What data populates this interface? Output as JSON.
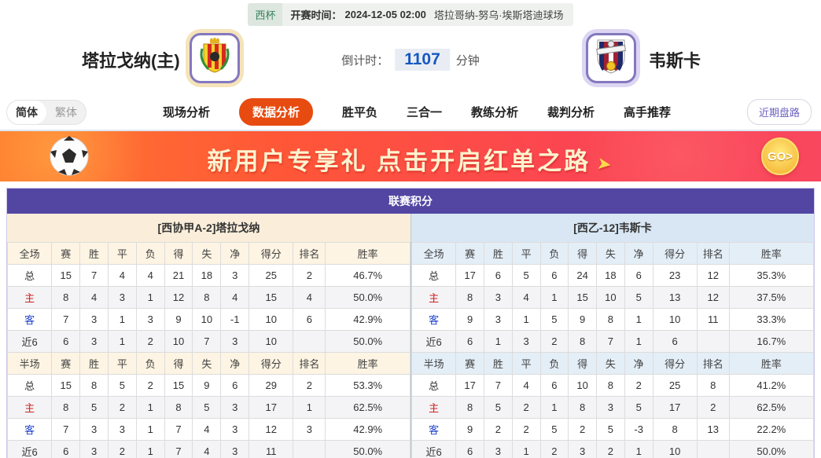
{
  "top_bar": {
    "league": "西杯",
    "kickoff_label": "开赛时间：",
    "kickoff_time": "2024-12-05 02:00",
    "venue": "塔拉哥纳-努乌·埃斯塔迪球场"
  },
  "header": {
    "home": {
      "name": "塔拉戈纳(主)",
      "badge_icon": "tarragona-crest"
    },
    "away": {
      "name": "韦斯卡",
      "badge_icon": "huesca-crest"
    },
    "countdown": {
      "label": "倒计时：",
      "value": "1107",
      "unit": "分钟"
    }
  },
  "nav": {
    "lang": [
      {
        "label": "简体",
        "active": true
      },
      {
        "label": "繁体",
        "active": false
      }
    ],
    "items": [
      {
        "label": "现场分析",
        "active": false
      },
      {
        "label": "数据分析",
        "active": true
      },
      {
        "label": "胜平负",
        "active": false
      },
      {
        "label": "三合一",
        "active": false
      },
      {
        "label": "教练分析",
        "active": false
      },
      {
        "label": "裁判分析",
        "active": false
      },
      {
        "label": "高手推荐",
        "active": false
      }
    ],
    "recent_button": "近期盘路",
    "active_color": "#e84b10"
  },
  "banner": {
    "text": "新用户专享礼  点击开启红单之路",
    "arrow_icon": "➤",
    "go_label": "GO>"
  },
  "league_table": {
    "title": "联赛积分",
    "title_color": "#5246a2",
    "columns_full": [
      "全场",
      "赛",
      "胜",
      "平",
      "负",
      "得",
      "失",
      "净",
      "得分",
      "排名",
      "胜率"
    ],
    "columns_half": [
      "半场",
      "赛",
      "胜",
      "平",
      "负",
      "得",
      "失",
      "净",
      "得分",
      "排名",
      "胜率"
    ],
    "teams": [
      {
        "side": "home",
        "league_rank": "[西协甲A-2]塔拉戈纳",
        "full": [
          {
            "label": "总",
            "values": [
              "15",
              "7",
              "4",
              "4",
              "21",
              "18",
              "3",
              "25",
              "2",
              "46.7%"
            ]
          },
          {
            "label": "主",
            "values": [
              "8",
              "4",
              "3",
              "1",
              "12",
              "8",
              "4",
              "15",
              "4",
              "50.0%"
            ]
          },
          {
            "label": "客",
            "values": [
              "7",
              "3",
              "1",
              "3",
              "9",
              "10",
              "-1",
              "10",
              "6",
              "42.9%"
            ]
          },
          {
            "label": "近6",
            "values": [
              "6",
              "3",
              "1",
              "2",
              "10",
              "7",
              "3",
              "10",
              "",
              "50.0%"
            ]
          }
        ],
        "half": [
          {
            "label": "总",
            "values": [
              "15",
              "8",
              "5",
              "2",
              "15",
              "9",
              "6",
              "29",
              "2",
              "53.3%"
            ]
          },
          {
            "label": "主",
            "values": [
              "8",
              "5",
              "2",
              "1",
              "8",
              "5",
              "3",
              "17",
              "1",
              "62.5%"
            ]
          },
          {
            "label": "客",
            "values": [
              "7",
              "3",
              "3",
              "1",
              "7",
              "4",
              "3",
              "12",
              "3",
              "42.9%"
            ]
          },
          {
            "label": "近6",
            "values": [
              "6",
              "3",
              "2",
              "1",
              "7",
              "4",
              "3",
              "11",
              "",
              "50.0%"
            ]
          }
        ]
      },
      {
        "side": "away",
        "league_rank": "[西乙-12]韦斯卡",
        "full": [
          {
            "label": "总",
            "values": [
              "17",
              "6",
              "5",
              "6",
              "24",
              "18",
              "6",
              "23",
              "12",
              "35.3%"
            ]
          },
          {
            "label": "主",
            "values": [
              "8",
              "3",
              "4",
              "1",
              "15",
              "10",
              "5",
              "13",
              "12",
              "37.5%"
            ]
          },
          {
            "label": "客",
            "values": [
              "9",
              "3",
              "1",
              "5",
              "9",
              "8",
              "1",
              "10",
              "11",
              "33.3%"
            ]
          },
          {
            "label": "近6",
            "values": [
              "6",
              "1",
              "3",
              "2",
              "8",
              "7",
              "1",
              "6",
              "",
              "16.7%"
            ]
          }
        ],
        "half": [
          {
            "label": "总",
            "values": [
              "17",
              "7",
              "4",
              "6",
              "10",
              "8",
              "2",
              "25",
              "8",
              "41.2%"
            ]
          },
          {
            "label": "主",
            "values": [
              "8",
              "5",
              "2",
              "1",
              "8",
              "3",
              "5",
              "17",
              "2",
              "62.5%"
            ]
          },
          {
            "label": "客",
            "values": [
              "9",
              "2",
              "2",
              "5",
              "2",
              "5",
              "-3",
              "8",
              "13",
              "22.2%"
            ]
          },
          {
            "label": "近6",
            "values": [
              "6",
              "3",
              "1",
              "2",
              "3",
              "2",
              "1",
              "10",
              "",
              "50.0%"
            ]
          }
        ]
      }
    ]
  }
}
